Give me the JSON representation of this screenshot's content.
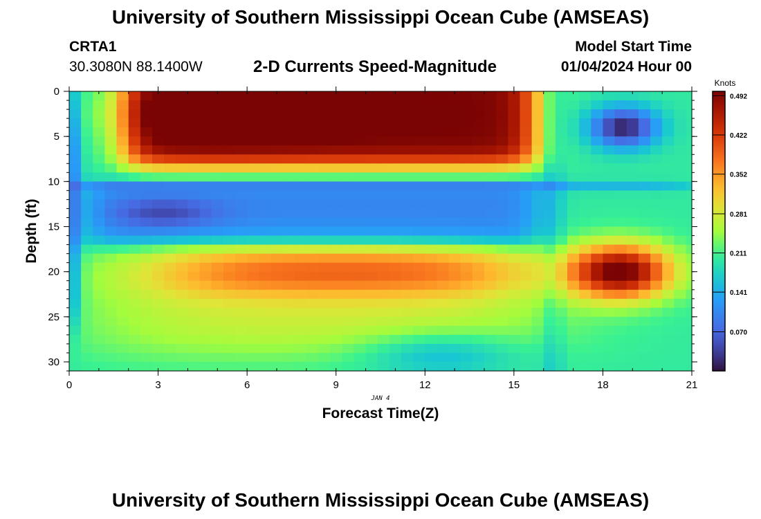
{
  "header": {
    "title": "University of Southern Mississippi Ocean Cube (AMSEAS)",
    "station_id": "CRTA1",
    "station_coords": "30.3080N  88.1400W",
    "plot_title": "2-D Currents Speed-Magnitude",
    "model_start_label": "Model Start Time",
    "model_start_value": "01/04/2024 Hour 00"
  },
  "footer": {
    "title": "University of Southern Mississippi Ocean Cube (AMSEAS)"
  },
  "chart_data": {
    "type": "heatmap",
    "title": "2-D Currents Speed-Magnitude",
    "xlabel": "Forecast Time(Z)",
    "ylabel": "Depth (ft)",
    "date_label": "JAN 4",
    "xlim": [
      0,
      21
    ],
    "ylim": [
      0,
      31
    ],
    "y_inverted": true,
    "xticks": [
      0,
      3,
      6,
      9,
      12,
      15,
      18,
      21
    ],
    "yticks": [
      0,
      5,
      10,
      15,
      20,
      25,
      30
    ],
    "colorbar": {
      "label": "Knots",
      "range": [
        0.0,
        0.5
      ],
      "ticks": [
        "0.492",
        "0.422",
        "0.352",
        "0.281",
        "0.211",
        "0.141",
        "0.070"
      ],
      "tick_values": [
        0.492,
        0.422,
        0.352,
        0.281,
        0.211,
        0.141,
        0.07
      ]
    },
    "grid_x_step_hours": 0.4,
    "grid_y_step_ft": 1,
    "field_description": {
      "surface_core": {
        "hours": [
          2,
          15.5
        ],
        "depth_ft": [
          0,
          8
        ],
        "peak_knots": 0.5
      },
      "mid_minimum": {
        "hours": [
          1,
          15.5
        ],
        "depth_ft": [
          11,
          16
        ],
        "min_knots": 0.03
      },
      "lower_band": {
        "hours": [
          4,
          15
        ],
        "depth_ft": [
          18,
          22
        ],
        "peak_knots": 0.35
      },
      "late_deep_core": {
        "hours": [
          17,
          20.5
        ],
        "depth_ft": [
          16,
          24
        ],
        "peak_knots": 0.48
      },
      "late_surface_minimum": {
        "hours": [
          17,
          20
        ],
        "depth_ft": [
          0,
          8
        ],
        "min_knots": 0.02
      }
    }
  }
}
